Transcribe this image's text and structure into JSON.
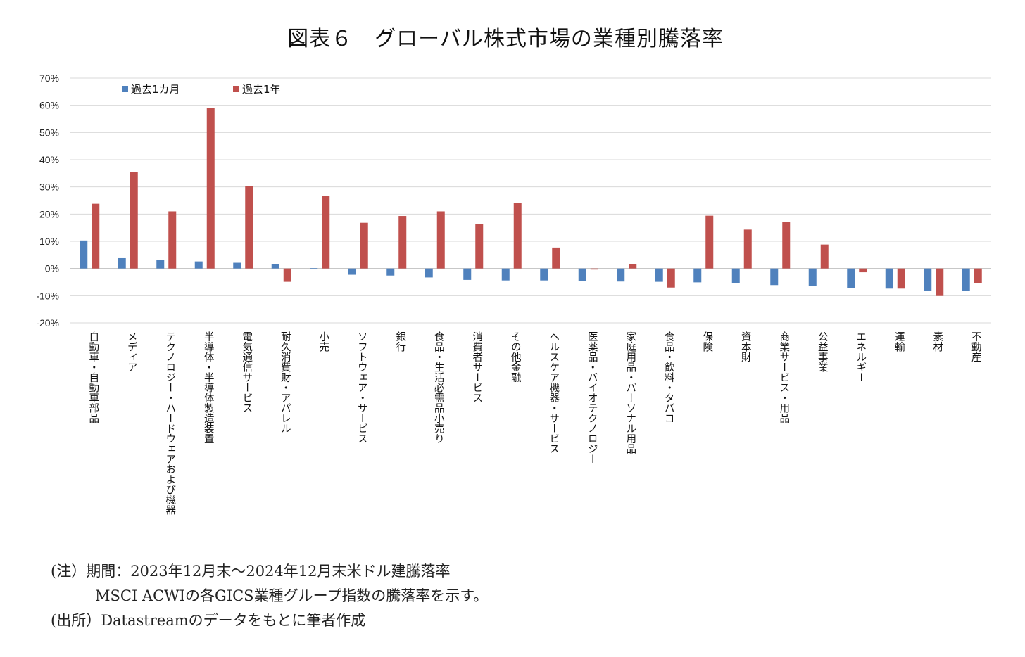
{
  "title": "図表６　グローバル株式市場の業種別騰落率",
  "colors": {
    "series1": "#4f81bd",
    "series2": "#c0504d",
    "grid": "#d9d9d9"
  },
  "chart_data": {
    "type": "bar",
    "ylim": [
      -20,
      70
    ],
    "yticks": [
      70,
      60,
      50,
      40,
      30,
      20,
      10,
      0,
      -10,
      -20
    ],
    "yticklabels": [
      "70%",
      "60%",
      "50%",
      "40%",
      "30%",
      "20%",
      "10%",
      "0%",
      "-10%",
      "-20%"
    ],
    "grid": true,
    "legend_position": "top-left",
    "categories": [
      "自動車・自動車部品",
      "メディア",
      "テクノロジー・ハードウェアおよび機器",
      "半導体・半導体製造装置",
      "電気通信サービス",
      "耐久消費財・アパレル",
      "小売",
      "ソフトウェア・サービス",
      "銀行",
      "食品・生活必需品小売り",
      "消費者サービス",
      "その他金融",
      "ヘルスケア機器・サービス",
      "医薬品・バイオテクノロジー",
      "家庭用品・パーソナル用品",
      "食品・飲料・タバコ",
      "保険",
      "資本財",
      "商業サービス・用品",
      "公益事業",
      "エネルギー",
      "運輸",
      "素材",
      "不動産"
    ],
    "series": [
      {
        "name": "過去1カ月",
        "values": [
          10.3,
          3.8,
          3.2,
          2.6,
          2.1,
          1.6,
          0.1,
          -2.3,
          -2.6,
          -3.3,
          -4.2,
          -4.4,
          -4.4,
          -4.7,
          -4.8,
          -4.9,
          -5.1,
          -5.3,
          -6.1,
          -6.5,
          -7.3,
          -7.4,
          -8.1,
          -8.3
        ]
      },
      {
        "name": "過去1年",
        "values": [
          23.8,
          35.6,
          21.0,
          59.0,
          30.3,
          -4.9,
          26.8,
          16.8,
          19.3,
          21.0,
          16.4,
          24.2,
          7.7,
          -0.4,
          1.5,
          -7.0,
          19.4,
          14.3,
          17.1,
          8.8,
          -1.4,
          -7.4,
          -10.1,
          -5.4
        ]
      }
    ]
  },
  "notes": [
    "(注）期間：2023年12月末～2024年12月末米ドル建騰落率",
    "MSCI ACWIの各GICS業種グループ指数の騰落率を示す。",
    "(出所）Datastreamのデータをもとに筆者作成"
  ]
}
